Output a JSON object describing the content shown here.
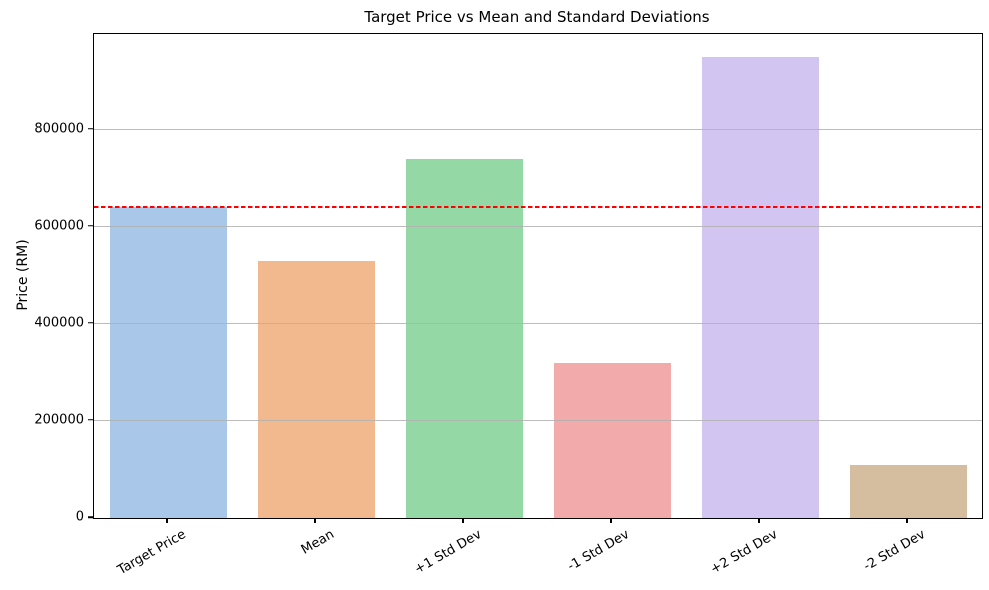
{
  "chart_data": {
    "type": "bar",
    "title": "Target Price vs Mean and Standard Deviations",
    "xlabel": "",
    "ylabel": "Price (RM)",
    "categories": [
      "Target Price",
      "Mean",
      "+1 Std Dev",
      "-1 Std Dev",
      "+2 Std Dev",
      "-2 Std Dev"
    ],
    "values": [
      640000,
      530000,
      740000,
      320000,
      950000,
      110000
    ],
    "bar_colors": [
      "#a9c8e9",
      "#f2b98e",
      "#94d8a6",
      "#f2aaab",
      "#d3c5f1",
      "#d5bda0"
    ],
    "reference_line": {
      "value": 640000,
      "color": "#ff0000",
      "style": "dashed"
    },
    "ylim": [
      0,
      997500
    ],
    "yticks": [
      0,
      200000,
      400000,
      600000,
      800000
    ],
    "ytick_labels": [
      "0",
      "200000",
      "400000",
      "600000",
      "800000"
    ],
    "grid": "horizontal-only",
    "grid_color": "#b0b0b0",
    "legend": "none",
    "x_tick_rotation_deg": 30
  }
}
